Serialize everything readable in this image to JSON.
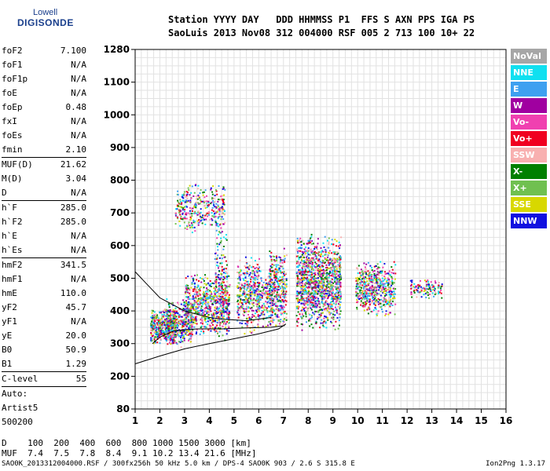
{
  "logo": {
    "line1": "Lowell",
    "line2": "DIGISONDE"
  },
  "header": {
    "row1": "Station YYYY DAY   DDD HHMMSS P1  FFS S AXN PPS IGA PS",
    "row2": "SaoLuis 2013 Nov08 312 004000 RSF 005 2 713 100 10+ 22"
  },
  "params": {
    "group1": [
      {
        "k": "foF2",
        "v": "7.100"
      },
      {
        "k": "foF1",
        "v": "N/A"
      },
      {
        "k": "foF1p",
        "v": "N/A"
      },
      {
        "k": "foE",
        "v": "N/A"
      },
      {
        "k": "foEp",
        "v": "0.48"
      },
      {
        "k": "fxI",
        "v": "N/A"
      },
      {
        "k": "foEs",
        "v": "N/A"
      },
      {
        "k": "fmin",
        "v": "2.10"
      }
    ],
    "group2": [
      {
        "k": "MUF(D)",
        "v": "21.62"
      },
      {
        "k": "M(D)",
        "v": "3.04"
      },
      {
        "k": "D",
        "v": "N/A"
      }
    ],
    "group3": [
      {
        "k": "h`F",
        "v": "285.0"
      },
      {
        "k": "h`F2",
        "v": "285.0"
      },
      {
        "k": "h`E",
        "v": "N/A"
      },
      {
        "k": "h`Es",
        "v": "N/A"
      }
    ],
    "group4": [
      {
        "k": "hmF2",
        "v": "341.5"
      },
      {
        "k": "hmF1",
        "v": "N/A"
      },
      {
        "k": "hmE",
        "v": "110.0"
      },
      {
        "k": "yF2",
        "v": "45.7"
      },
      {
        "k": "yF1",
        "v": "N/A"
      },
      {
        "k": "yE",
        "v": "20.0"
      },
      {
        "k": "B0",
        "v": "50.9"
      },
      {
        "k": "B1",
        "v": "1.29"
      }
    ],
    "group5": [
      {
        "k": "C-level",
        "v": "55"
      }
    ],
    "auto": [
      "Auto:",
      "Artist5",
      "500200"
    ]
  },
  "legend": [
    {
      "label": "NoVal",
      "color": "#a6a6a6"
    },
    {
      "label": "NNE",
      "color": "#10e0f0"
    },
    {
      "label": "E",
      "color": "#3ea0f0"
    },
    {
      "label": "W",
      "color": "#a000a0"
    },
    {
      "label": "Vo-",
      "color": "#f040b0"
    },
    {
      "label": "Vo+",
      "color": "#f00020"
    },
    {
      "label": "SSW",
      "color": "#f8b0b0"
    },
    {
      "label": "X-",
      "color": "#008000"
    },
    {
      "label": "X+",
      "color": "#70c050"
    },
    {
      "label": "SSE",
      "color": "#d8d800"
    },
    {
      "label": "NNW",
      "color": "#1010e0"
    }
  ],
  "muf_table": {
    "row1": "D    100  200  400  600  800 1000 1500 3000 [km]",
    "row2": "MUF  7.4  7.5  7.8  8.4  9.1 10.2 13.4 21.6 [MHz]"
  },
  "footer": {
    "left": "SAO0K_2013312004000.RSF / 300fx256h 50 kHz 5.0 km / DPS-4 SAO0K 903 / 2.6 S 315.8 E",
    "right": "Ion2Png 1.3.17"
  },
  "chart_data": {
    "type": "scatter",
    "x_ticks": [
      1,
      2,
      3,
      4,
      5,
      6,
      7,
      8,
      9,
      10,
      11,
      12,
      13,
      14,
      15,
      16
    ],
    "y_ticks": [
      80,
      200,
      300,
      400,
      500,
      600,
      700,
      800,
      900,
      1000,
      1100,
      1280
    ],
    "xlim": [
      1,
      16
    ],
    "ylim": [
      80,
      1280
    ],
    "grid": true,
    "clusters": [
      {
        "xr": [
          1.6,
          2.6
        ],
        "yr": [
          300,
          410
        ],
        "n": 420
      },
      {
        "xr": [
          2.2,
          3.3
        ],
        "yr": [
          290,
          440
        ],
        "n": 360
      },
      {
        "xr": [
          3.0,
          4.8
        ],
        "yr": [
          320,
          520
        ],
        "n": 700
      },
      {
        "xr": [
          2.6,
          4.6
        ],
        "yr": [
          640,
          800
        ],
        "n": 340
      },
      {
        "xr": [
          4.2,
          4.7
        ],
        "yr": [
          300,
          700
        ],
        "n": 160
      },
      {
        "xr": [
          5.1,
          6.0
        ],
        "yr": [
          330,
          580
        ],
        "n": 360
      },
      {
        "xr": [
          5.9,
          6.5
        ],
        "yr": [
          350,
          530
        ],
        "n": 160
      },
      {
        "xr": [
          6.4,
          7.1
        ],
        "yr": [
          340,
          600
        ],
        "n": 340
      },
      {
        "xr": [
          7.5,
          9.3
        ],
        "yr": [
          340,
          640
        ],
        "n": 1300
      },
      {
        "xr": [
          9.9,
          11.5
        ],
        "yr": [
          380,
          560
        ],
        "n": 520
      },
      {
        "xr": [
          12.1,
          13.4
        ],
        "yr": [
          440,
          500
        ],
        "n": 120
      }
    ],
    "profile_curves": [
      {
        "name": "",
        "points": [
          [
            1,
            238
          ],
          [
            2,
            262
          ],
          [
            3,
            284
          ],
          [
            4,
            300
          ],
          [
            5,
            315
          ],
          [
            6,
            330
          ],
          [
            6.8,
            345
          ],
          [
            7.1,
            360
          ]
        ]
      },
      {
        "name": "",
        "points": [
          [
            1.7,
            300
          ],
          [
            2,
            320
          ],
          [
            2.6,
            340
          ],
          [
            3.5,
            345
          ],
          [
            4.5,
            345
          ],
          [
            5.5,
            348
          ],
          [
            6.5,
            350
          ],
          [
            7.05,
            355
          ]
        ]
      },
      {
        "name": "",
        "points": [
          [
            1.0,
            520
          ],
          [
            1.5,
            480
          ],
          [
            2.0,
            440
          ],
          [
            3.0,
            400
          ],
          [
            4.0,
            380
          ],
          [
            4.5,
            375
          ],
          [
            5.5,
            370
          ],
          [
            6.5,
            380
          ]
        ]
      }
    ]
  }
}
